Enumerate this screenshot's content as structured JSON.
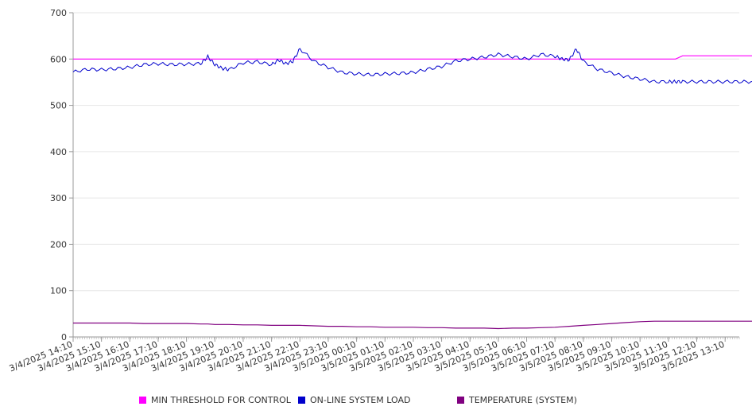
{
  "chart_data": {
    "type": "line",
    "title": "",
    "xlabel": "",
    "ylabel": "",
    "ylim": [
      0,
      700
    ],
    "yticks": [
      0,
      100,
      200,
      300,
      400,
      500,
      600,
      700
    ],
    "grid": true,
    "legend_position": "bottom",
    "x_tick_labels": [
      "3/4/2025 14:10",
      "3/4/2025 15:10",
      "3/4/2025 16:10",
      "3/4/2025 17:10",
      "3/4/2025 18:10",
      "3/4/2025 19:10",
      "3/4/2025 20:10",
      "3/4/2025 21:10",
      "3/4/2025 22:10",
      "3/4/2025 23:10",
      "3/5/2025 00:10",
      "3/5/2025 01:10",
      "3/5/2025 02:10",
      "3/5/2025 03:10",
      "3/5/2025 04:10",
      "3/5/2025 05:10",
      "3/5/2025 06:10",
      "3/5/2025 07:10",
      "3/5/2025 08:10",
      "3/5/2025 09:10",
      "3/5/2025 10:10",
      "3/5/2025 11:10",
      "3/5/2025 12:10",
      "3/5/2025 13:10"
    ],
    "x_hours": [
      0,
      0.5,
      1,
      1.5,
      2,
      2.5,
      3,
      3.5,
      4,
      4.5,
      4.75,
      5,
      5.25,
      5.5,
      6,
      6.5,
      7,
      7.25,
      7.5,
      7.75,
      8,
      8.5,
      9,
      9.5,
      10,
      10.5,
      11,
      11.5,
      12,
      12.5,
      13,
      13.5,
      14,
      14.5,
      15,
      15.5,
      16,
      16.5,
      17,
      17.25,
      17.5,
      17.75,
      18,
      18.5,
      19,
      19.5,
      20,
      20.5,
      21,
      21.25,
      21.5,
      22,
      22.5,
      23,
      23.5,
      24
    ],
    "series": [
      {
        "name": "MIN THRESHOLD FOR CONTROL",
        "color": "#ff00ff",
        "values": [
          600,
          600,
          600,
          600,
          600,
          600,
          600,
          600,
          600,
          600,
          600,
          600,
          600,
          600,
          600,
          600,
          600,
          600,
          600,
          600,
          600,
          600,
          600,
          600,
          600,
          600,
          600,
          600,
          600,
          600,
          600,
          600,
          600,
          600,
          600,
          600,
          600,
          600,
          600,
          600,
          600,
          600,
          600,
          600,
          600,
          600,
          600,
          600,
          600,
          600,
          607,
          607,
          607,
          607,
          607,
          607
        ]
      },
      {
        "name": "ON-LINE SYSTEM LOAD",
        "color": "#0000cc",
        "values": [
          572,
          578,
          577,
          579,
          582,
          588,
          590,
          588,
          589,
          590,
          605,
          588,
          580,
          577,
          592,
          594,
          588,
          598,
          590,
          595,
          622,
          595,
          582,
          571,
          568,
          566,
          568,
          569,
          571,
          578,
          584,
          596,
          600,
          604,
          610,
          605,
          600,
          610,
          606,
          600,
          598,
          622,
          595,
          578,
          570,
          562,
          557,
          551,
          551,
          551,
          551,
          551,
          551,
          551,
          551,
          551
        ]
      },
      {
        "name": "TEMPERATURE (SYSTEM)",
        "color": "#800080",
        "values": [
          30,
          30,
          30,
          30,
          30,
          29,
          29,
          29,
          29,
          28,
          28,
          27,
          27,
          27,
          26,
          26,
          25,
          25,
          25,
          25,
          25,
          24,
          23,
          23,
          22,
          22,
          21,
          21,
          21,
          20,
          20,
          19,
          19,
          19,
          18,
          19,
          19,
          20,
          21,
          22,
          23,
          24,
          25,
          27,
          29,
          31,
          33,
          34,
          34,
          34,
          34,
          34,
          34,
          34,
          34,
          34
        ]
      }
    ]
  }
}
